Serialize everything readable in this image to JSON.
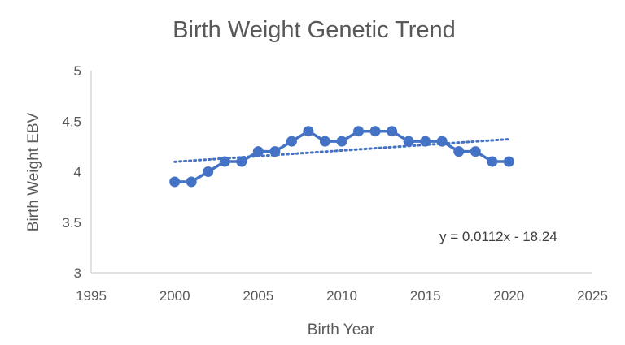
{
  "chart_data": {
    "type": "line",
    "title": "Birth Weight Genetic Trend",
    "xlabel": "Birth Year",
    "ylabel": "Birth Weight EBV",
    "xlim": [
      1995,
      2025
    ],
    "ylim": [
      3,
      5
    ],
    "xticks": [
      "1995",
      "2000",
      "2005",
      "2010",
      "2015",
      "2020",
      "2025"
    ],
    "yticks": [
      "3",
      "3.5",
      "4",
      "4.5",
      "5"
    ],
    "grid": false,
    "legend": "none",
    "colors": {
      "series": "#4472C4",
      "text": "#595959",
      "axis": "#d9d9d9"
    },
    "series": [
      {
        "x": [
          2000,
          2001,
          2002,
          2003,
          2004,
          2005,
          2006,
          2007,
          2008,
          2009,
          2010,
          2011,
          2012,
          2013,
          2014,
          2015,
          2016,
          2017,
          2018,
          2019,
          2020
        ],
        "values": [
          3.9,
          3.9,
          4.0,
          4.1,
          4.1,
          4.2,
          4.2,
          4.3,
          4.4,
          4.3,
          4.3,
          4.4,
          4.4,
          4.4,
          4.3,
          4.3,
          4.3,
          4.2,
          4.2,
          4.1,
          4.1
        ]
      }
    ],
    "trendline": {
      "type": "linear",
      "x_range": [
        2000,
        2020
      ],
      "equation_label": "y = 0.0112x - 18.24"
    }
  }
}
